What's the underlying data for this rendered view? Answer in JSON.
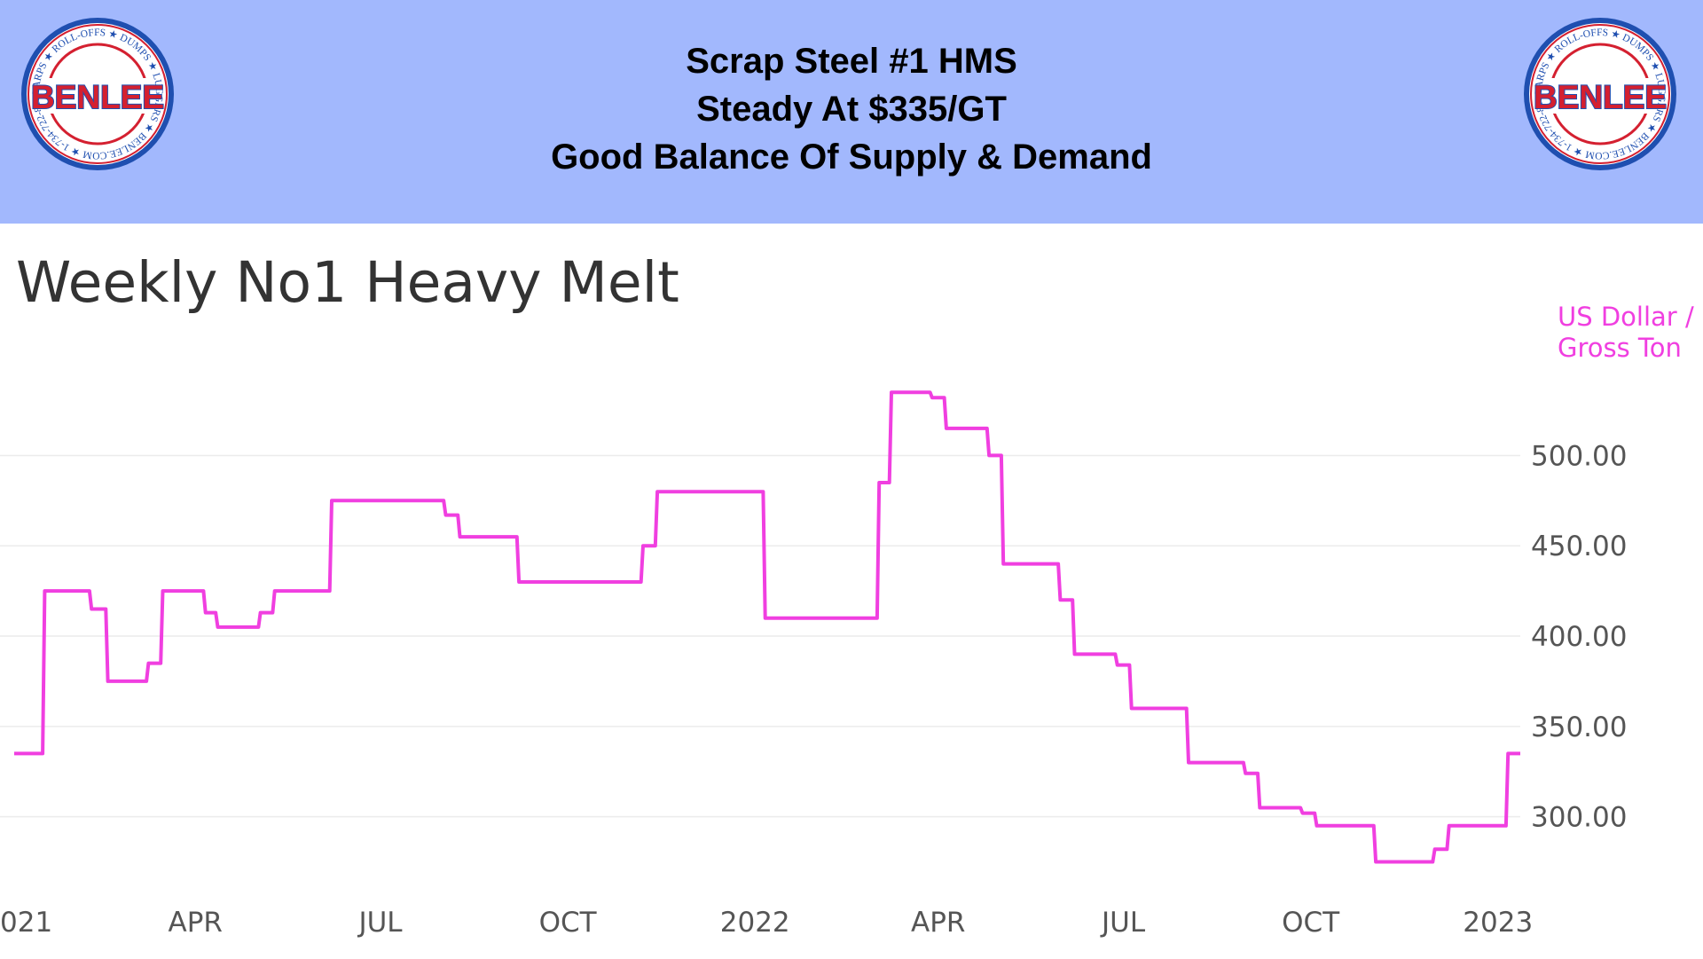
{
  "banner": {
    "headline": [
      "Scrap Steel #1 HMS",
      "Steady At $335/GT",
      "Good Balance Of Supply & Demand"
    ],
    "logo": {
      "name": "BENLEE",
      "ring_text": "TARPS ★ ROLL-OFFS ★ DUMPS ★ LUGGERS ★ BENLEE.COM ★ 1-734-722-8100 ★ PARTS ★"
    },
    "colors": {
      "banner": "#a2b8fd",
      "logo_red": "#d42030",
      "logo_blue": "#1f4fb0"
    }
  },
  "chart_data": {
    "type": "line",
    "title": "Weekly No1 Heavy Melt",
    "ylabel": "US Dollar / Gross Ton",
    "ylabel_lines": [
      "US Dollar /",
      "Gross Ton"
    ],
    "line_color": "#f03fe0",
    "grid": "horizontal",
    "y_axis_side": "right",
    "ylim": [
      262,
      540
    ],
    "xlim": [
      "2021-01-02",
      "2023-01-12"
    ],
    "y_ticks": [
      500,
      450,
      400,
      350,
      300
    ],
    "y_tick_labels": [
      "500.00",
      "450.00",
      "400.00",
      "350.00",
      "300.00"
    ],
    "x_ticks": [
      "2021-01-01",
      "2021-04-01",
      "2021-07-01",
      "2021-10-01",
      "2022-01-01",
      "2022-04-01",
      "2022-07-01",
      "2022-10-01",
      "2023-01-01"
    ],
    "x_tick_labels": [
      "021",
      "APR",
      "JUL",
      "OCT",
      "2022",
      "APR",
      "JUL",
      "OCT",
      "2023"
    ],
    "series": [
      {
        "x": [
          "2021-01-02",
          "2021-01-16",
          "2021-01-17",
          "2021-02-08",
          "2021-02-09",
          "2021-02-16",
          "2021-02-17",
          "2021-03-08",
          "2021-03-09",
          "2021-03-15",
          "2021-03-16",
          "2021-04-05",
          "2021-04-06",
          "2021-04-11",
          "2021-04-12",
          "2021-05-02",
          "2021-05-03",
          "2021-05-09",
          "2021-05-10",
          "2021-06-06",
          "2021-06-07",
          "2021-08-01",
          "2021-08-02",
          "2021-08-08",
          "2021-08-09",
          "2021-09-06",
          "2021-09-07",
          "2021-11-06",
          "2021-11-07",
          "2021-11-13",
          "2021-11-14",
          "2022-01-05",
          "2022-01-06",
          "2022-03-02",
          "2022-03-03",
          "2022-03-08",
          "2022-03-09",
          "2022-03-28",
          "2022-03-29",
          "2022-04-04",
          "2022-04-05",
          "2022-04-25",
          "2022-04-26",
          "2022-05-02",
          "2022-05-03",
          "2022-05-30",
          "2022-05-31",
          "2022-06-06",
          "2022-06-07",
          "2022-06-27",
          "2022-06-28",
          "2022-07-04",
          "2022-07-05",
          "2022-08-01",
          "2022-08-02",
          "2022-08-29",
          "2022-08-30",
          "2022-09-05",
          "2022-09-06",
          "2022-09-26",
          "2022-09-27",
          "2022-10-03",
          "2022-10-04",
          "2022-11-01",
          "2022-11-02",
          "2022-11-30",
          "2022-12-01",
          "2022-12-07",
          "2022-12-08",
          "2023-01-05",
          "2023-01-06",
          "2023-01-12"
        ],
        "y": [
          335,
          335,
          425,
          425,
          415,
          415,
          375,
          375,
          385,
          385,
          425,
          425,
          413,
          413,
          405,
          405,
          413,
          413,
          425,
          425,
          475,
          475,
          467,
          467,
          455,
          455,
          430,
          430,
          450,
          450,
          480,
          480,
          410,
          410,
          485,
          485,
          535,
          535,
          532,
          532,
          515,
          515,
          500,
          500,
          440,
          440,
          420,
          420,
          390,
          390,
          384,
          384,
          360,
          360,
          330,
          330,
          324,
          324,
          305,
          305,
          302,
          302,
          295,
          295,
          275,
          275,
          282,
          282,
          295,
          295,
          335,
          335
        ]
      }
    ]
  }
}
